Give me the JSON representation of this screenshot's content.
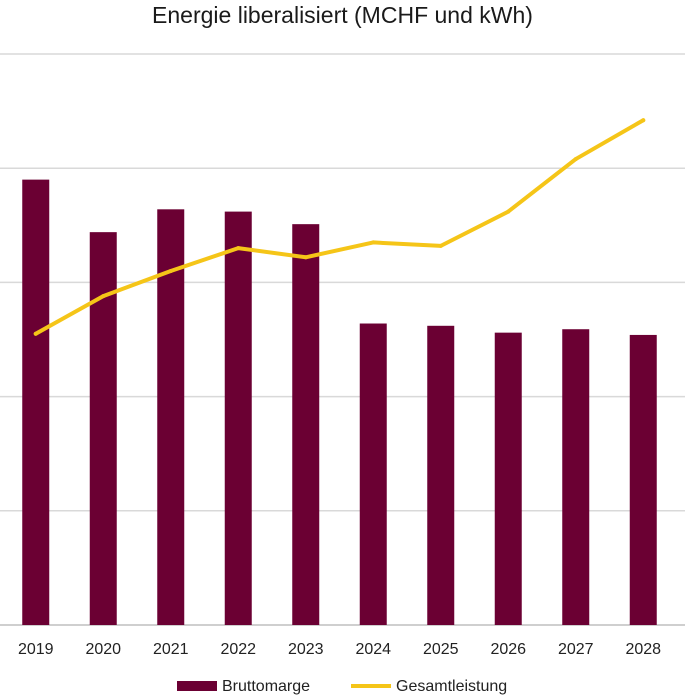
{
  "chart_data": {
    "type": "bar",
    "title": "Energie liberalisiert (MCHF und kWh)",
    "xlabel": "",
    "ylabel": "",
    "categories": [
      "2019",
      "2020",
      "2021",
      "2022",
      "2023",
      "2024",
      "2025",
      "2026",
      "2027",
      "2028"
    ],
    "ylim": [
      0,
      100
    ],
    "grid": true,
    "legend_position": "bottom",
    "series": [
      {
        "name": "Bruttomarge",
        "kind": "bar",
        "color": "#6b0033",
        "values": [
          78,
          68.8,
          72.8,
          72.4,
          70.2,
          52.8,
          52.4,
          51.2,
          51.8,
          50.8
        ]
      },
      {
        "name": "Gesamtleistung",
        "kind": "line",
        "color": "#f5c518",
        "values": [
          51,
          57.6,
          62,
          66,
          64.4,
          67,
          66.4,
          72.4,
          81.6,
          88.4
        ]
      }
    ]
  }
}
